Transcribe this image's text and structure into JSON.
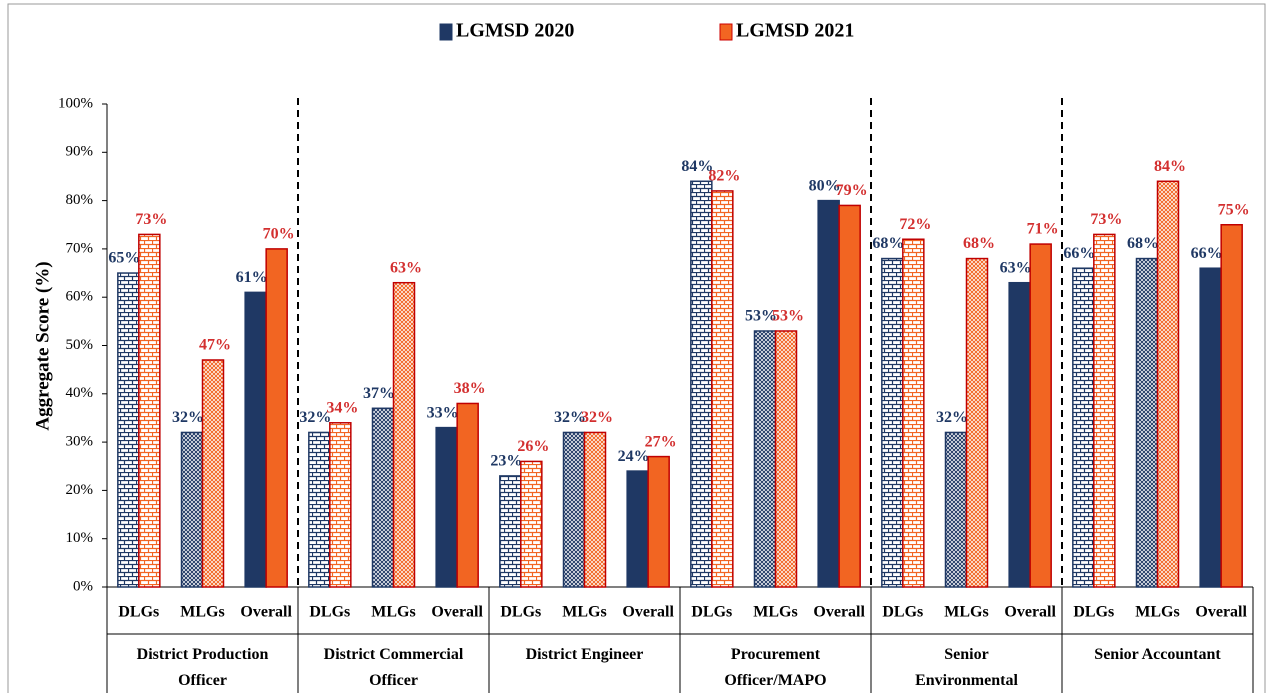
{
  "chart_data": {
    "type": "bar",
    "ylabel": "Aggregate Score (%)",
    "categories": [
      "DLGs",
      "MLGs",
      "Overall",
      "DLGs",
      "MLGs",
      "Overall",
      "DLGs",
      "MLGs",
      "Overall",
      "DLGs",
      "MLGs",
      "Overall",
      "DLGs",
      "MLGs",
      "Overall",
      "DLGs",
      "MLGs",
      "Overall"
    ],
    "groups": [
      "District Production Officer",
      "District Commercial Officer",
      "District Engineer",
      "Procurement Officer/MAPO",
      "Senior Environmental Officer",
      "Senior Accountant"
    ],
    "series": [
      {
        "name": "LGMSD 2020",
        "color": "#1f3864",
        "values": [
          65,
          32,
          61,
          32,
          37,
          33,
          23,
          32,
          24,
          84,
          53,
          80,
          68,
          32,
          63,
          66,
          68,
          66
        ],
        "value_labels": [
          "65%",
          "32%",
          "61%",
          "32%",
          "37%",
          "33%",
          "23%",
          "32%",
          "24%",
          "84%",
          "53%",
          "80%",
          "68%",
          "32%",
          "63%",
          "66%",
          "68%",
          "66%"
        ]
      },
      {
        "name": "LGMSD 2021",
        "color": "#f26522",
        "values": [
          73,
          47,
          70,
          34,
          63,
          38,
          26,
          32,
          27,
          82,
          53,
          79,
          72,
          68,
          71,
          73,
          84,
          75
        ],
        "value_labels": [
          "73%",
          "47%",
          "70%",
          "34%",
          "63%",
          "38%",
          "26%",
          "32%",
          "27%",
          "82%",
          "53%",
          "79%",
          "72%",
          "68%",
          "71%",
          "73%",
          "84%",
          "75%"
        ]
      }
    ],
    "ylim": [
      0,
      100
    ],
    "yticks": [
      {
        "value": 0,
        "label": "0%"
      },
      {
        "value": 10,
        "label": "10%"
      },
      {
        "value": 20,
        "label": "20%"
      },
      {
        "value": 30,
        "label": "30%"
      },
      {
        "value": 40,
        "label": "40%"
      },
      {
        "value": 50,
        "label": "50%"
      },
      {
        "value": 60,
        "label": "60%"
      },
      {
        "value": 70,
        "label": "70%"
      },
      {
        "value": 80,
        "label": "80%"
      },
      {
        "value": 90,
        "label": "90%"
      },
      {
        "value": 100,
        "label": "100%"
      }
    ],
    "legend": "top"
  }
}
